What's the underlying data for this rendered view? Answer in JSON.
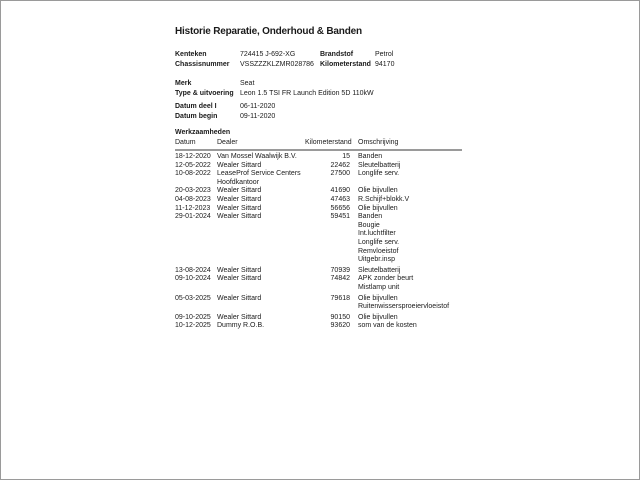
{
  "page": {
    "title": "Historie Reparatie, Onderhoud & Banden"
  },
  "vehicle": {
    "kenteken_label": "Kenteken",
    "kenteken_value": "724415 J-692-XG",
    "chassisnummer_label": "Chassisnummer",
    "chassisnummer_value": "VSSZZZKLZMR028786",
    "brandstof_label": "Brandstof",
    "brandstof_value": "Petrol",
    "kilometerstand_label": "Kilometerstand",
    "kilometerstand_value": "94170",
    "merk_label": "Merk",
    "merk_value": "Seat",
    "type_label": "Type & uitvoering",
    "type_value": "Leon 1.5 TSI FR Launch Edition 5D 110kW",
    "datum_deel1_label": "Datum deel I",
    "datum_deel1_value": "06-11-2020",
    "datum_begin_label": "Datum begin",
    "datum_begin_value": "09-11-2020"
  },
  "werkzaamheden": {
    "section_title": "Werkzaamheden",
    "columns": [
      "Datum",
      "Dealer",
      "Kilometerstand",
      "Omschrijving"
    ],
    "rows": [
      {
        "datum": "18-12-2020",
        "dealer": [
          "Van Mossel Waalwijk B.V."
        ],
        "kilometerstand": "15",
        "omschrijving": [
          "Banden"
        ]
      },
      {
        "datum": "12-05-2022",
        "dealer": [
          "Wealer Sittard"
        ],
        "kilometerstand": "22462",
        "omschrijving": [
          "Sleutelbatterij"
        ]
      },
      {
        "datum": "10-08-2022",
        "dealer": [
          "LeaseProf Service Centers",
          "Hoofdkantoor"
        ],
        "kilometerstand": "27500",
        "omschrijving": [
          "Longlife serv."
        ]
      },
      {
        "datum": "20-03-2023",
        "dealer": [
          "Wealer Sittard"
        ],
        "kilometerstand": "41690",
        "omschrijving": [
          "Olie bijvullen"
        ]
      },
      {
        "datum": "04-08-2023",
        "dealer": [
          "Wealer Sittard"
        ],
        "kilometerstand": "47463",
        "omschrijving": [
          "R.Schijf+blokk.V"
        ]
      },
      {
        "datum": "11-12-2023",
        "dealer": [
          "Wealer Sittard"
        ],
        "kilometerstand": "56656",
        "omschrijving": [
          "Olie bijvullen"
        ]
      },
      {
        "datum": "29-01-2024",
        "dealer": [
          "Wealer Sittard"
        ],
        "kilometerstand": "59451",
        "omschrijving": [
          "Banden",
          "Bougie",
          "Int.luchtfilter",
          "Longlife serv.",
          "Remvloeistof",
          "Uitgebr.insp"
        ]
      },
      {
        "datum": "13-08-2024",
        "dealer": [
          "Wealer Sittard"
        ],
        "kilometerstand": "70939",
        "omschrijving": [
          "Sleutelbatterij"
        ]
      },
      {
        "datum": "09-10-2024",
        "dealer": [
          "Wealer Sittard"
        ],
        "kilometerstand": "74842",
        "omschrijving": [
          "APK zonder beurt",
          "Mistlamp unit"
        ]
      },
      {
        "datum": "05-03-2025",
        "dealer": [
          "Wealer Sittard"
        ],
        "kilometerstand": "79618",
        "omschrijving": [
          "Olie bijvullen",
          "Ruitenwissersproeiervloeistof"
        ]
      },
      {
        "datum": "09-10-2025",
        "dealer": [
          "Wealer Sittard"
        ],
        "kilometerstand": "90150",
        "omschrijving": [
          "Olie bijvullen"
        ]
      },
      {
        "datum": "10-12-2025",
        "dealer": [
          "Dummy R.O.B."
        ],
        "kilometerstand": "93620",
        "omschrijving": [
          "som van de kosten"
        ]
      }
    ]
  },
  "colors": {
    "background": "#ffffff",
    "text": "#1a1a1a",
    "header_rule": "#9a9a9a"
  }
}
